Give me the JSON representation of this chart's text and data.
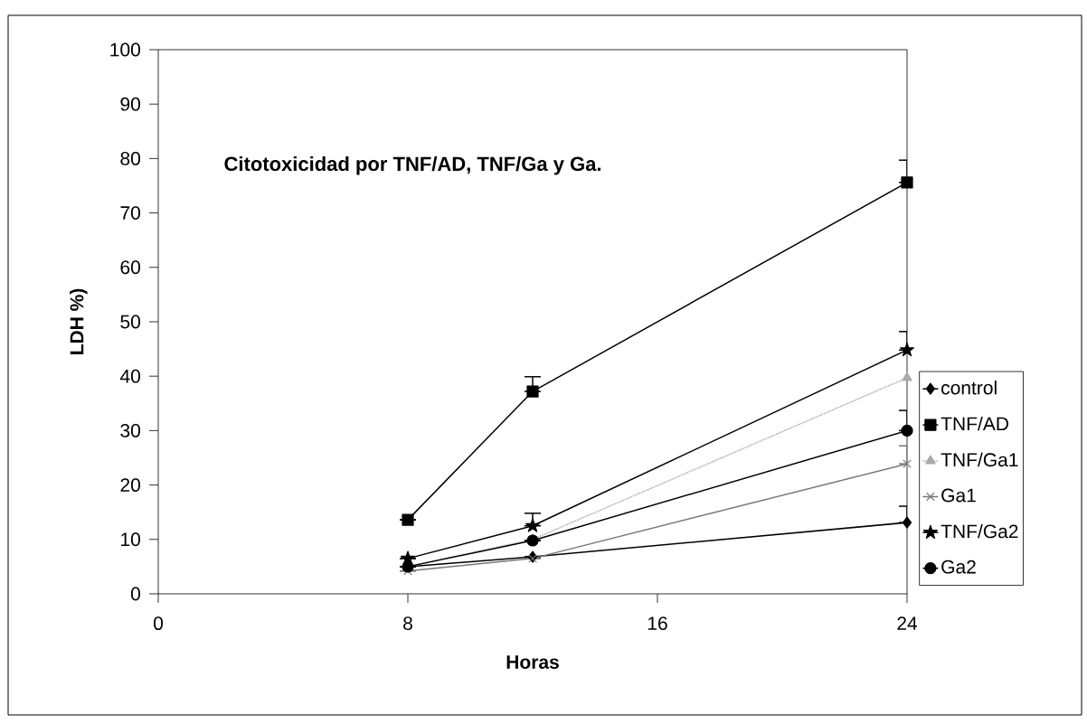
{
  "chart_data": {
    "type": "line",
    "title": "Citotoxicidad por TNF/AD, TNF/Ga y Ga.",
    "xlabel": "Horas",
    "ylabel": "LDH %)",
    "x": [
      8,
      12,
      24
    ],
    "xlim": [
      0,
      24
    ],
    "xticks": [
      0,
      8,
      16,
      24
    ],
    "ylim": [
      0,
      100
    ],
    "yticks": [
      0,
      10,
      20,
      30,
      40,
      50,
      60,
      70,
      80,
      90,
      100
    ],
    "grid": false,
    "legend": "right",
    "line_style": "solid",
    "series": [
      {
        "name": "control",
        "color": "#000000",
        "marker": "diamond",
        "values": [
          5,
          6.8,
          13.1
        ],
        "errors": [
          null,
          null,
          [
            13.1,
            16.1
          ]
        ]
      },
      {
        "name": "TNF/AD",
        "color": "#000000",
        "marker": "square",
        "values": [
          13.6,
          37.2,
          75.6
        ],
        "errors": [
          null,
          [
            37.2,
            39.9
          ],
          [
            75.6,
            79.7
          ]
        ]
      },
      {
        "name": "TNF/Ga1",
        "color": "#aaaaaa",
        "marker": "triangle",
        "line_style": "dotted",
        "values": [
          5,
          10,
          39.7
        ]
      },
      {
        "name": "Ga1",
        "color": "#777777",
        "marker": "cross",
        "values": [
          4.2,
          6.5,
          23.9
        ],
        "errors": [
          null,
          null,
          [
            23.9,
            27.2
          ]
        ]
      },
      {
        "name": "TNF/Ga2",
        "color": "#000000",
        "marker": "star",
        "values": [
          6.5,
          12.5,
          44.8
        ],
        "errors": [
          null,
          [
            12.5,
            14.8
          ],
          [
            44.8,
            48.2
          ]
        ]
      },
      {
        "name": "Ga2",
        "color": "#000000",
        "marker": "circle",
        "values": [
          5,
          9.8,
          30
        ],
        "errors": [
          null,
          null,
          [
            30,
            33.7
          ]
        ]
      }
    ]
  }
}
